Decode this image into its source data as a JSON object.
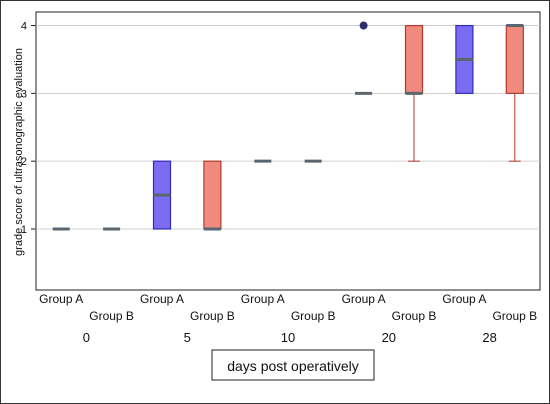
{
  "chart_data": {
    "type": "boxplot",
    "ylabel": "grade score of ultrasonographic evaluation",
    "xlabel": "days post operatively",
    "y_ticks": [
      1,
      2,
      3,
      4
    ],
    "ylim": [
      0.1,
      4.2
    ],
    "grid": "horizontal",
    "time_points": [
      "0",
      "5",
      "10",
      "20",
      "28"
    ],
    "group_labels": [
      "Group A",
      "Group B"
    ],
    "colors": {
      "group_a_fill": "#7b6cf2",
      "group_a_edge": "#2d2db8",
      "group_b_fill": "#f08a7e",
      "group_b_edge": "#b03a2a",
      "median": "#5a6670",
      "outlier": "#2d2d6e"
    },
    "series": [
      {
        "group": "Group A",
        "boxes": [
          {
            "day": "0",
            "min": 1,
            "q1": 1,
            "median": 1,
            "q3": 1,
            "max": 1
          },
          {
            "day": "5",
            "min": 1,
            "q1": 1,
            "median": 1.5,
            "q3": 2,
            "max": 2
          },
          {
            "day": "10",
            "min": 2,
            "q1": 2,
            "median": 2,
            "q3": 2,
            "max": 2
          },
          {
            "day": "20",
            "min": 3,
            "q1": 3,
            "median": 3,
            "q3": 3,
            "max": 3,
            "outliers": [
              4
            ]
          },
          {
            "day": "28",
            "min": 3,
            "q1": 3,
            "median": 3.5,
            "q3": 4,
            "max": 4
          }
        ]
      },
      {
        "group": "Group B",
        "boxes": [
          {
            "day": "0",
            "min": 1,
            "q1": 1,
            "median": 1,
            "q3": 1,
            "max": 1
          },
          {
            "day": "5",
            "min": 1,
            "q1": 1,
            "median": 1,
            "q3": 2,
            "max": 2
          },
          {
            "day": "10",
            "min": 2,
            "q1": 2,
            "median": 2,
            "q3": 2,
            "max": 2
          },
          {
            "day": "20",
            "min": 2,
            "q1": 3,
            "median": 3,
            "q3": 4,
            "max": 4
          },
          {
            "day": "28",
            "min": 2,
            "q1": 3,
            "median": 4,
            "q3": 4,
            "max": 4
          }
        ]
      }
    ]
  }
}
